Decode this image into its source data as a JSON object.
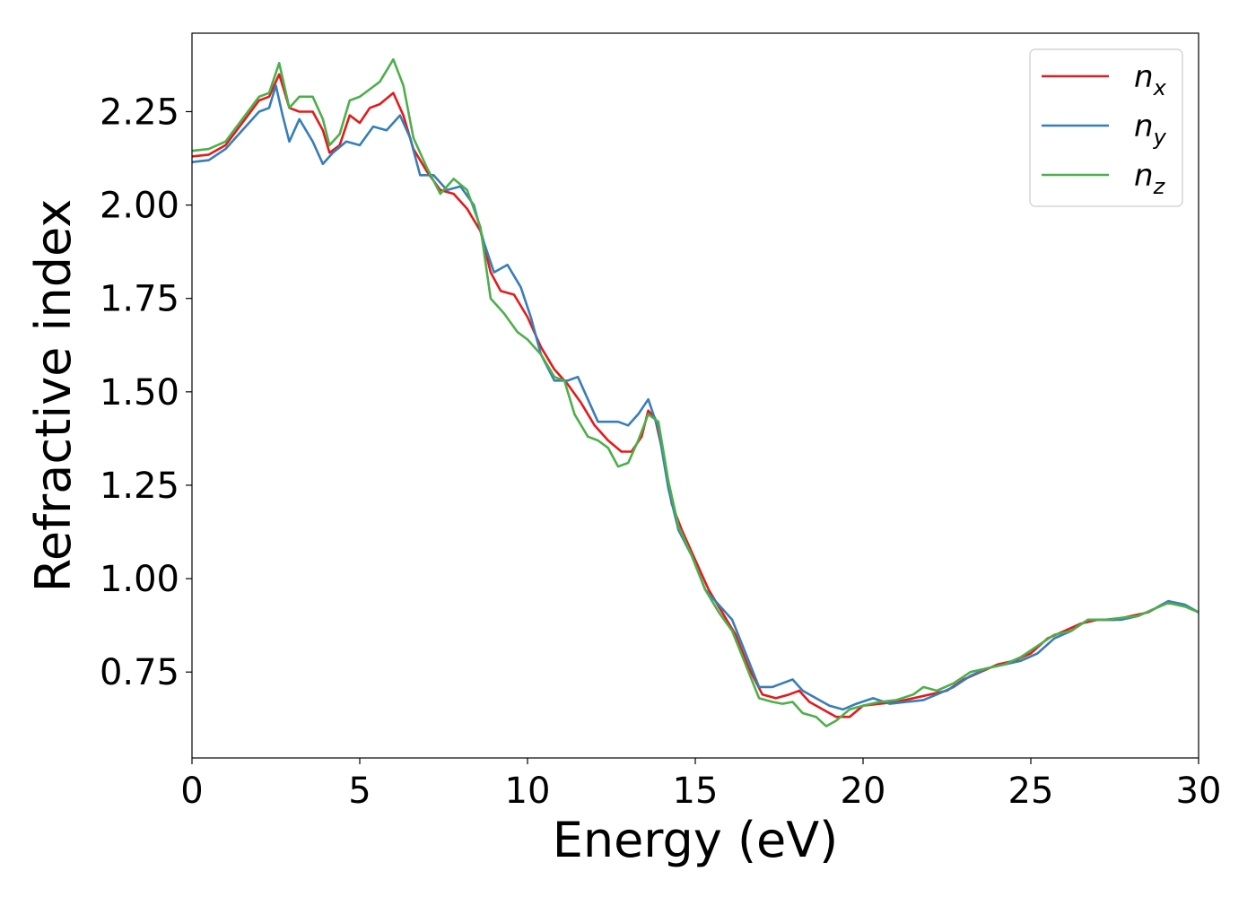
{
  "chart_data": {
    "type": "line",
    "title": "",
    "xlabel": "Energy (eV)",
    "ylabel": "Refractive index",
    "xlim": [
      0,
      30
    ],
    "ylim": [
      0.52,
      2.46
    ],
    "xticks": [
      "0",
      "5",
      "10",
      "15",
      "20",
      "25",
      "30"
    ],
    "xtick_values": [
      0,
      5,
      10,
      15,
      20,
      25,
      30
    ],
    "yticks": [
      "0.75",
      "1.00",
      "1.25",
      "1.50",
      "1.75",
      "2.00",
      "2.25"
    ],
    "ytick_values": [
      0.75,
      1.0,
      1.25,
      1.5,
      1.75,
      2.0,
      2.25
    ],
    "grid": false,
    "legend_position": "top-right",
    "series": [
      {
        "name": "n_x",
        "legend_base": "n",
        "legend_sub": "x",
        "color": "#e41a1c",
        "points": [
          [
            0,
            2.13
          ],
          [
            0.5,
            2.135
          ],
          [
            1.0,
            2.16
          ],
          [
            1.5,
            2.22
          ],
          [
            2.0,
            2.28
          ],
          [
            2.3,
            2.29
          ],
          [
            2.6,
            2.35
          ],
          [
            2.9,
            2.26
          ],
          [
            3.2,
            2.25
          ],
          [
            3.6,
            2.25
          ],
          [
            3.9,
            2.2
          ],
          [
            4.1,
            2.14
          ],
          [
            4.4,
            2.16
          ],
          [
            4.7,
            2.24
          ],
          [
            5.0,
            2.22
          ],
          [
            5.3,
            2.26
          ],
          [
            5.6,
            2.27
          ],
          [
            6.0,
            2.3
          ],
          [
            6.3,
            2.24
          ],
          [
            6.6,
            2.15
          ],
          [
            7.0,
            2.09
          ],
          [
            7.4,
            2.04
          ],
          [
            7.8,
            2.03
          ],
          [
            8.2,
            1.99
          ],
          [
            8.6,
            1.93
          ],
          [
            8.9,
            1.82
          ],
          [
            9.2,
            1.77
          ],
          [
            9.6,
            1.76
          ],
          [
            10.0,
            1.7
          ],
          [
            10.4,
            1.62
          ],
          [
            10.8,
            1.56
          ],
          [
            11.2,
            1.52
          ],
          [
            11.6,
            1.47
          ],
          [
            12.0,
            1.41
          ],
          [
            12.4,
            1.37
          ],
          [
            12.8,
            1.34
          ],
          [
            13.1,
            1.34
          ],
          [
            13.4,
            1.38
          ],
          [
            13.6,
            1.45
          ],
          [
            13.8,
            1.43
          ],
          [
            14.0,
            1.35
          ],
          [
            14.3,
            1.2
          ],
          [
            14.6,
            1.13
          ],
          [
            15.0,
            1.05
          ],
          [
            15.4,
            0.97
          ],
          [
            15.8,
            0.91
          ],
          [
            16.2,
            0.85
          ],
          [
            16.6,
            0.76
          ],
          [
            17.0,
            0.69
          ],
          [
            17.4,
            0.68
          ],
          [
            17.8,
            0.69
          ],
          [
            18.1,
            0.7
          ],
          [
            18.4,
            0.67
          ],
          [
            18.8,
            0.65
          ],
          [
            19.2,
            0.63
          ],
          [
            19.6,
            0.63
          ],
          [
            20.0,
            0.66
          ],
          [
            20.5,
            0.665
          ],
          [
            21.0,
            0.67
          ],
          [
            21.5,
            0.68
          ],
          [
            22.0,
            0.69
          ],
          [
            22.5,
            0.7
          ],
          [
            23.0,
            0.73
          ],
          [
            23.5,
            0.75
          ],
          [
            24.0,
            0.77
          ],
          [
            24.5,
            0.78
          ],
          [
            25.0,
            0.8
          ],
          [
            25.5,
            0.84
          ],
          [
            26.0,
            0.86
          ],
          [
            26.5,
            0.88
          ],
          [
            27.0,
            0.89
          ],
          [
            27.5,
            0.89
          ],
          [
            28.0,
            0.9
          ],
          [
            28.5,
            0.91
          ],
          [
            29.0,
            0.935
          ],
          [
            29.5,
            0.93
          ],
          [
            30.0,
            0.91
          ]
        ]
      },
      {
        "name": "n_y",
        "legend_base": "n",
        "legend_sub": "y",
        "color": "#377eb8",
        "points": [
          [
            0,
            2.115
          ],
          [
            0.5,
            2.12
          ],
          [
            1.0,
            2.15
          ],
          [
            1.5,
            2.2
          ],
          [
            2.0,
            2.25
          ],
          [
            2.3,
            2.26
          ],
          [
            2.5,
            2.32
          ],
          [
            2.7,
            2.24
          ],
          [
            2.9,
            2.17
          ],
          [
            3.2,
            2.23
          ],
          [
            3.6,
            2.17
          ],
          [
            3.9,
            2.11
          ],
          [
            4.2,
            2.14
          ],
          [
            4.6,
            2.17
          ],
          [
            5.0,
            2.16
          ],
          [
            5.4,
            2.21
          ],
          [
            5.8,
            2.2
          ],
          [
            6.2,
            2.24
          ],
          [
            6.5,
            2.18
          ],
          [
            6.8,
            2.08
          ],
          [
            7.2,
            2.08
          ],
          [
            7.6,
            2.04
          ],
          [
            8.0,
            2.05
          ],
          [
            8.4,
            2.0
          ],
          [
            8.7,
            1.9
          ],
          [
            9.0,
            1.82
          ],
          [
            9.4,
            1.84
          ],
          [
            9.8,
            1.78
          ],
          [
            10.1,
            1.7
          ],
          [
            10.4,
            1.6
          ],
          [
            10.8,
            1.53
          ],
          [
            11.2,
            1.53
          ],
          [
            11.5,
            1.54
          ],
          [
            11.8,
            1.48
          ],
          [
            12.1,
            1.42
          ],
          [
            12.4,
            1.42
          ],
          [
            12.7,
            1.42
          ],
          [
            13.0,
            1.41
          ],
          [
            13.3,
            1.44
          ],
          [
            13.6,
            1.48
          ],
          [
            13.9,
            1.4
          ],
          [
            14.2,
            1.24
          ],
          [
            14.5,
            1.13
          ],
          [
            14.9,
            1.06
          ],
          [
            15.3,
            0.97
          ],
          [
            15.7,
            0.93
          ],
          [
            16.1,
            0.89
          ],
          [
            16.5,
            0.8
          ],
          [
            16.9,
            0.71
          ],
          [
            17.3,
            0.71
          ],
          [
            17.6,
            0.72
          ],
          [
            17.9,
            0.73
          ],
          [
            18.2,
            0.7
          ],
          [
            18.6,
            0.68
          ],
          [
            19.0,
            0.66
          ],
          [
            19.4,
            0.65
          ],
          [
            19.8,
            0.665
          ],
          [
            20.3,
            0.68
          ],
          [
            20.8,
            0.665
          ],
          [
            21.3,
            0.67
          ],
          [
            21.8,
            0.675
          ],
          [
            22.2,
            0.69
          ],
          [
            22.7,
            0.71
          ],
          [
            23.2,
            0.74
          ],
          [
            23.7,
            0.76
          ],
          [
            24.2,
            0.77
          ],
          [
            24.7,
            0.78
          ],
          [
            25.2,
            0.8
          ],
          [
            25.7,
            0.84
          ],
          [
            26.2,
            0.86
          ],
          [
            26.7,
            0.89
          ],
          [
            27.2,
            0.89
          ],
          [
            27.7,
            0.89
          ],
          [
            28.2,
            0.9
          ],
          [
            28.7,
            0.92
          ],
          [
            29.1,
            0.94
          ],
          [
            29.6,
            0.93
          ],
          [
            30.0,
            0.91
          ]
        ]
      },
      {
        "name": "n_z",
        "legend_base": "n",
        "legend_sub": "z",
        "color": "#4daf4a",
        "points": [
          [
            0,
            2.145
          ],
          [
            0.5,
            2.15
          ],
          [
            1.0,
            2.17
          ],
          [
            1.5,
            2.23
          ],
          [
            2.0,
            2.29
          ],
          [
            2.3,
            2.3
          ],
          [
            2.6,
            2.38
          ],
          [
            2.9,
            2.26
          ],
          [
            3.2,
            2.29
          ],
          [
            3.6,
            2.29
          ],
          [
            3.9,
            2.23
          ],
          [
            4.1,
            2.16
          ],
          [
            4.4,
            2.19
          ],
          [
            4.7,
            2.28
          ],
          [
            5.0,
            2.29
          ],
          [
            5.3,
            2.31
          ],
          [
            5.6,
            2.33
          ],
          [
            6.0,
            2.39
          ],
          [
            6.3,
            2.32
          ],
          [
            6.6,
            2.18
          ],
          [
            7.0,
            2.1
          ],
          [
            7.4,
            2.03
          ],
          [
            7.8,
            2.07
          ],
          [
            8.2,
            2.04
          ],
          [
            8.6,
            1.94
          ],
          [
            8.9,
            1.75
          ],
          [
            9.3,
            1.71
          ],
          [
            9.7,
            1.66
          ],
          [
            10.0,
            1.64
          ],
          [
            10.4,
            1.6
          ],
          [
            10.8,
            1.54
          ],
          [
            11.1,
            1.53
          ],
          [
            11.4,
            1.44
          ],
          [
            11.8,
            1.38
          ],
          [
            12.1,
            1.37
          ],
          [
            12.4,
            1.35
          ],
          [
            12.7,
            1.3
          ],
          [
            13.0,
            1.31
          ],
          [
            13.3,
            1.37
          ],
          [
            13.6,
            1.44
          ],
          [
            13.9,
            1.42
          ],
          [
            14.2,
            1.26
          ],
          [
            14.5,
            1.14
          ],
          [
            14.9,
            1.06
          ],
          [
            15.3,
            0.97
          ],
          [
            15.7,
            0.91
          ],
          [
            16.1,
            0.86
          ],
          [
            16.5,
            0.77
          ],
          [
            16.9,
            0.68
          ],
          [
            17.3,
            0.67
          ],
          [
            17.6,
            0.665
          ],
          [
            17.9,
            0.67
          ],
          [
            18.2,
            0.64
          ],
          [
            18.6,
            0.63
          ],
          [
            18.9,
            0.605
          ],
          [
            19.2,
            0.62
          ],
          [
            19.6,
            0.65
          ],
          [
            20.0,
            0.66
          ],
          [
            20.5,
            0.67
          ],
          [
            21.0,
            0.675
          ],
          [
            21.5,
            0.69
          ],
          [
            21.8,
            0.71
          ],
          [
            22.2,
            0.7
          ],
          [
            22.7,
            0.72
          ],
          [
            23.2,
            0.75
          ],
          [
            23.7,
            0.76
          ],
          [
            24.2,
            0.77
          ],
          [
            24.7,
            0.79
          ],
          [
            25.2,
            0.82
          ],
          [
            25.7,
            0.85
          ],
          [
            26.2,
            0.86
          ],
          [
            26.7,
            0.89
          ],
          [
            27.2,
            0.89
          ],
          [
            27.7,
            0.895
          ],
          [
            28.2,
            0.9
          ],
          [
            28.7,
            0.92
          ],
          [
            29.1,
            0.935
          ],
          [
            29.6,
            0.925
          ],
          [
            30.0,
            0.91
          ]
        ]
      }
    ]
  }
}
